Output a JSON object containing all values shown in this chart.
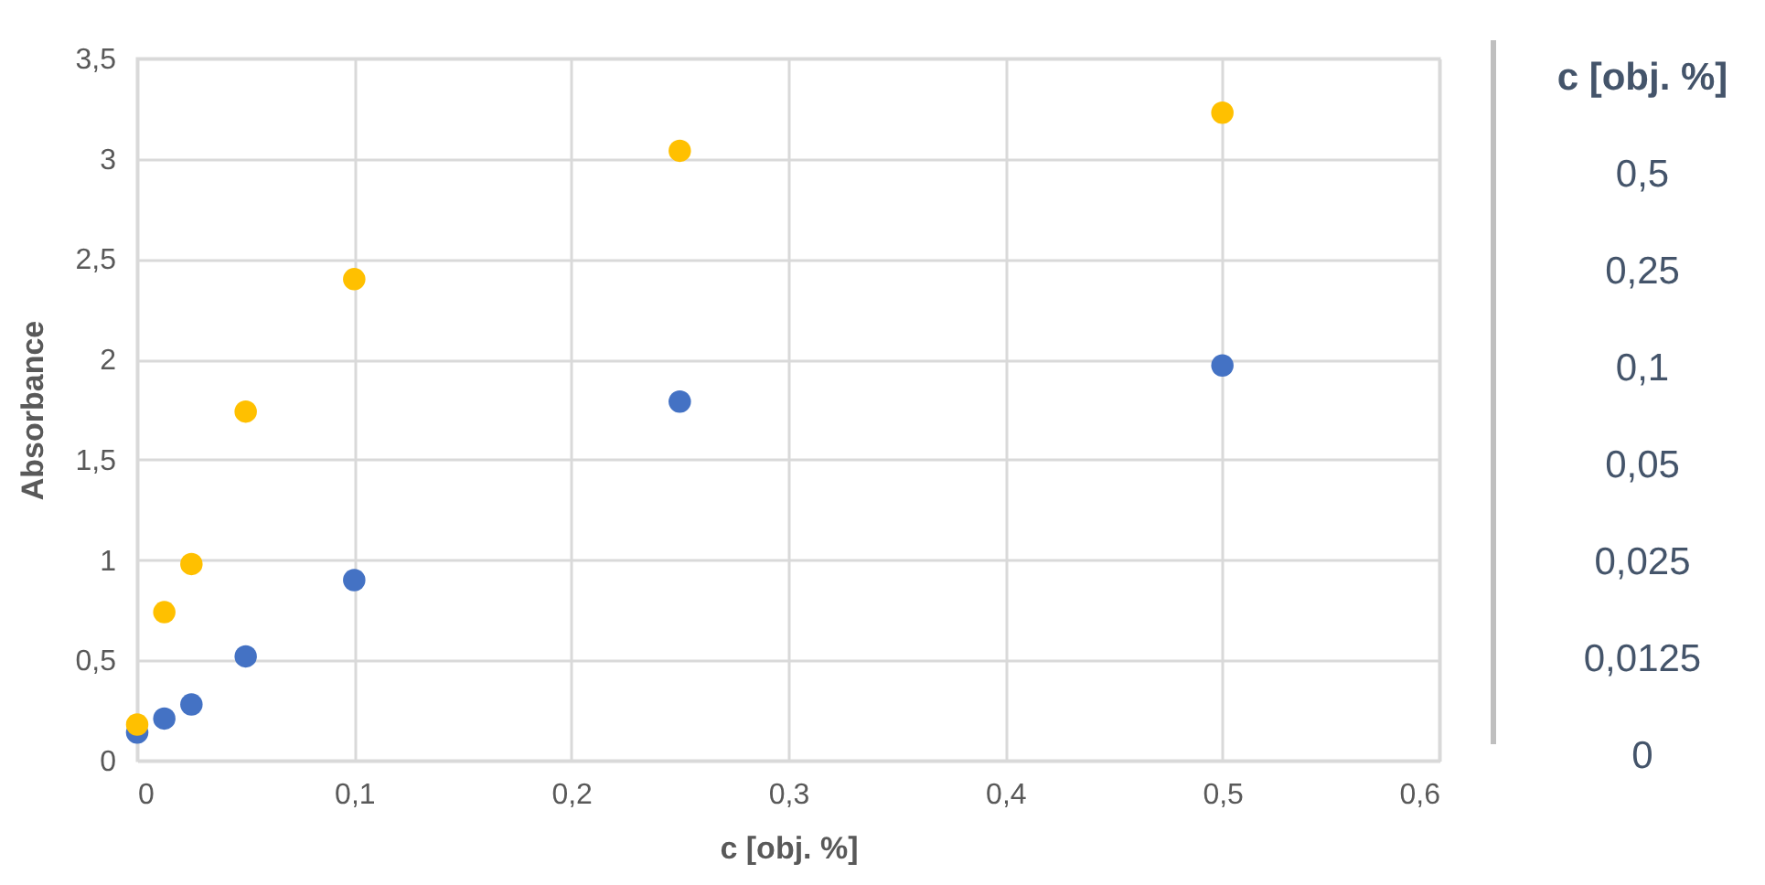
{
  "chart_data": {
    "type": "scatter",
    "xlabel": "c [obj. %]",
    "ylabel": "Absorbance",
    "x": [
      0,
      0.0125,
      0.025,
      0.05,
      0.1,
      0.25,
      0.5
    ],
    "series": [
      {
        "color": "#4472c4",
        "values": [
          0.14,
          0.21,
          0.28,
          0.52,
          0.9,
          1.79,
          1.97
        ]
      },
      {
        "color": "#ffc000",
        "values": [
          0.18,
          0.74,
          0.98,
          1.74,
          2.4,
          3.04,
          3.23
        ]
      }
    ],
    "xlim": [
      0,
      0.6
    ],
    "xticks": [
      0,
      {
        "value": 0.1,
        "label": "0,1"
      },
      {
        "value": 0.2,
        "label": "0,2"
      },
      {
        "value": 0.3,
        "label": "0,3"
      },
      {
        "value": 0.4,
        "label": "0,4"
      },
      {
        "value": 0.5,
        "label": "0,5"
      },
      {
        "value": 0.6,
        "label": "0,6"
      }
    ],
    "ylim": [
      0,
      3.5
    ],
    "yticks": [
      0,
      {
        "value": 0.5,
        "label": "0,5"
      },
      1,
      {
        "value": 1.5,
        "label": "1,5"
      },
      2,
      {
        "value": 2.5,
        "label": "2,5"
      },
      3,
      {
        "value": 3.5,
        "label": "3,5"
      }
    ],
    "grid": true,
    "marker": "circle",
    "annotations": [
      "c [obj. %]",
      "0,5",
      "0,25",
      "0,1",
      "0,05",
      "0,025",
      "0,0125",
      "0"
    ]
  }
}
